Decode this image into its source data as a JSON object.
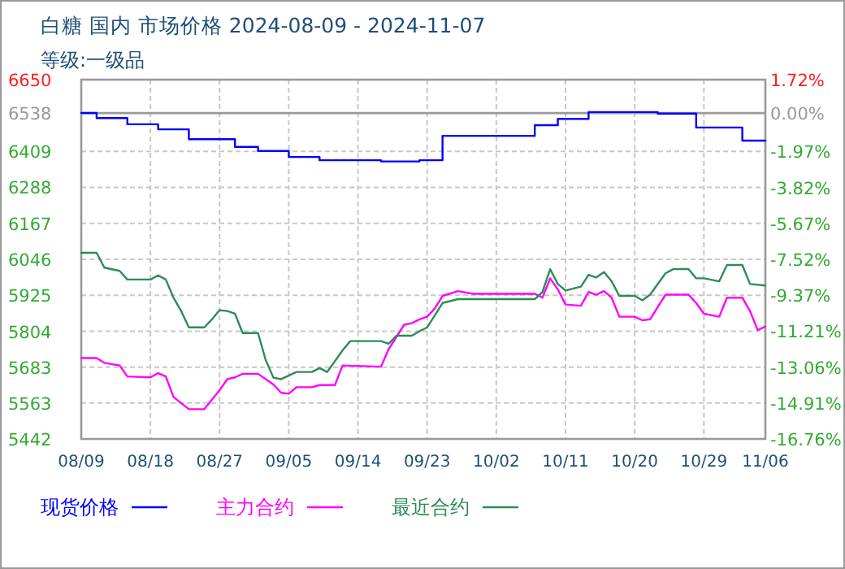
{
  "chart_data": {
    "type": "line",
    "title": "白糖 国内 市场价格 2024-08-09 - 2024-11-07",
    "subtitle": "等级:一级品",
    "xlim": [
      "2024-08-09",
      "2024-11-06"
    ],
    "xticks": [
      {
        "value": "2024-08-09",
        "label": "08/09"
      },
      {
        "value": "2024-08-18",
        "label": "08/18"
      },
      {
        "value": "2024-08-27",
        "label": "08/27"
      },
      {
        "value": "2024-09-05",
        "label": "09/05"
      },
      {
        "value": "2024-09-14",
        "label": "09/14"
      },
      {
        "value": "2024-09-23",
        "label": "09/23"
      },
      {
        "value": "2024-10-02",
        "label": "10/02"
      },
      {
        "value": "2024-10-11",
        "label": "10/11"
      },
      {
        "value": "2024-10-20",
        "label": "10/20"
      },
      {
        "value": "2024-10-29",
        "label": "10/29"
      },
      {
        "value": "2024-11-06",
        "label": "11/06"
      }
    ],
    "ylim": [
      5442,
      6650
    ],
    "yticks": [
      5442,
      5563,
      5683,
      5804,
      5925,
      6046,
      6167,
      6288,
      6409,
      6538,
      6650
    ],
    "y2lim": [
      -16.76,
      1.72
    ],
    "y2ticks": [
      {
        "value": -16.76,
        "label": "-16.76%"
      },
      {
        "value": -14.91,
        "label": "-14.91%"
      },
      {
        "value": -13.06,
        "label": "-13.06%"
      },
      {
        "value": -11.21,
        "label": "-11.21%"
      },
      {
        "value": -9.37,
        "label": "-9.37%"
      },
      {
        "value": -7.52,
        "label": "-7.52%"
      },
      {
        "value": -5.67,
        "label": "-5.67%"
      },
      {
        "value": -3.82,
        "label": "-3.82%"
      },
      {
        "value": -1.97,
        "label": "-1.97%"
      },
      {
        "value": 0,
        "label": "0.00%"
      },
      {
        "value": 1.72,
        "label": "1.72%"
      }
    ],
    "ref_lines": [
      {
        "axis": "y2",
        "value": 0,
        "color": "#999999"
      }
    ],
    "grid": true,
    "legend": "bottom",
    "series": [
      {
        "name": "现货价格",
        "type": "step",
        "color": "#0000ff",
        "x": [
          "2024-08-09",
          "2024-08-11",
          "2024-08-15",
          "2024-08-19",
          "2024-08-23",
          "2024-08-29",
          "2024-09-01",
          "2024-09-05",
          "2024-09-09",
          "2024-09-17",
          "2024-09-22",
          "2024-09-25",
          "2024-10-07",
          "2024-10-10",
          "2024-10-14",
          "2024-10-23",
          "2024-10-28",
          "2024-11-03",
          "2024-11-06"
        ],
        "values": [
          6538,
          6521,
          6500,
          6483,
          6450,
          6424,
          6410,
          6390,
          6379,
          6375,
          6379,
          6461,
          6497,
          6518,
          6541,
          6536,
          6489,
          6445,
          6445
        ]
      },
      {
        "name": "主力合约",
        "color": "#ff00ff",
        "x": [
          "2024-08-09",
          "2024-08-11",
          "2024-08-12",
          "2024-08-14",
          "2024-08-15",
          "2024-08-18",
          "2024-08-19",
          "2024-08-20",
          "2024-08-21",
          "2024-08-23",
          "2024-08-25",
          "2024-08-27",
          "2024-08-28",
          "2024-08-29",
          "2024-08-30",
          "2024-09-01",
          "2024-09-03",
          "2024-09-04",
          "2024-09-05",
          "2024-09-06",
          "2024-09-08",
          "2024-09-09",
          "2024-09-11",
          "2024-09-12",
          "2024-09-17",
          "2024-09-18",
          "2024-09-20",
          "2024-09-21",
          "2024-09-22",
          "2024-09-23",
          "2024-09-24",
          "2024-09-25",
          "2024-09-27",
          "2024-09-29",
          "2024-10-07",
          "2024-10-08",
          "2024-10-09",
          "2024-10-10",
          "2024-10-11",
          "2024-10-13",
          "2024-10-14",
          "2024-10-15",
          "2024-10-16",
          "2024-10-17",
          "2024-10-18",
          "2024-10-20",
          "2024-10-21",
          "2024-10-22",
          "2024-10-24",
          "2024-10-27",
          "2024-10-28",
          "2024-10-29",
          "2024-10-31",
          "2024-11-01",
          "2024-11-03",
          "2024-11-04",
          "2024-11-05",
          "2024-11-06"
        ],
        "values": [
          5714,
          5714,
          5698,
          5689,
          5652,
          5649,
          5663,
          5652,
          5583,
          5542,
          5542,
          5606,
          5643,
          5649,
          5661,
          5661,
          5625,
          5597,
          5594,
          5616,
          5616,
          5623,
          5623,
          5689,
          5685,
          5744,
          5826,
          5831,
          5844,
          5853,
          5881,
          5923,
          5939,
          5930,
          5930,
          5917,
          5982,
          5945,
          5894,
          5890,
          5936,
          5927,
          5939,
          5917,
          5853,
          5853,
          5841,
          5844,
          5927,
          5927,
          5899,
          5863,
          5853,
          5917,
          5917,
          5872,
          5808,
          5820
        ]
      },
      {
        "name": "最近合约",
        "color": "#2e8b57",
        "x": [
          "2024-08-09",
          "2024-08-11",
          "2024-08-12",
          "2024-08-14",
          "2024-08-15",
          "2024-08-18",
          "2024-08-19",
          "2024-08-20",
          "2024-08-21",
          "2024-08-22",
          "2024-08-23",
          "2024-08-25",
          "2024-08-26",
          "2024-08-27",
          "2024-08-28",
          "2024-08-29",
          "2024-08-30",
          "2024-09-01",
          "2024-09-02",
          "2024-09-03",
          "2024-09-04",
          "2024-09-06",
          "2024-09-08",
          "2024-09-09",
          "2024-09-10",
          "2024-09-12",
          "2024-09-13",
          "2024-09-17",
          "2024-09-18",
          "2024-09-19",
          "2024-09-21",
          "2024-09-22",
          "2024-09-23",
          "2024-09-25",
          "2024-09-27",
          "2024-10-07",
          "2024-10-08",
          "2024-10-09",
          "2024-10-10",
          "2024-10-11",
          "2024-10-13",
          "2024-10-14",
          "2024-10-15",
          "2024-10-16",
          "2024-10-17",
          "2024-10-18",
          "2024-10-20",
          "2024-10-21",
          "2024-10-22",
          "2024-10-24",
          "2024-10-25",
          "2024-10-27",
          "2024-10-28",
          "2024-10-29",
          "2024-10-31",
          "2024-11-01",
          "2024-11-03",
          "2024-11-04",
          "2024-11-06"
        ],
        "values": [
          6068,
          6068,
          6018,
          6007,
          5978,
          5978,
          5992,
          5978,
          5917,
          5872,
          5817,
          5817,
          5844,
          5875,
          5872,
          5863,
          5798,
          5798,
          5707,
          5648,
          5643,
          5667,
          5667,
          5680,
          5667,
          5740,
          5771,
          5771,
          5762,
          5789,
          5789,
          5804,
          5817,
          5899,
          5912,
          5912,
          5936,
          6013,
          5963,
          5941,
          5954,
          5994,
          5985,
          6003,
          5972,
          5923,
          5923,
          5908,
          5927,
          5999,
          6013,
          6013,
          5982,
          5982,
          5972,
          6027,
          6027,
          5963,
          5958
        ]
      }
    ]
  }
}
